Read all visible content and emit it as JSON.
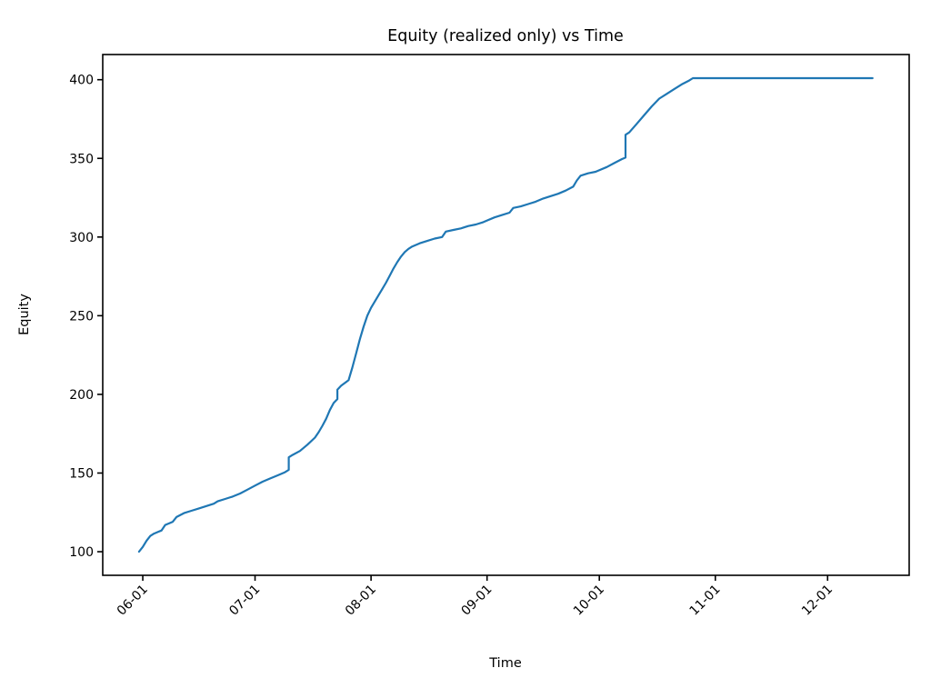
{
  "chart_data": {
    "type": "line",
    "title": "Equity (realized only) vs Time",
    "xlabel": "Time",
    "ylabel": "Equity",
    "x_tick_labels": [
      "06-01",
      "07-01",
      "08-01",
      "09-01",
      "10-01",
      "11-01",
      "12-01"
    ],
    "x_tick_days_from_06_01": [
      0,
      30,
      61,
      92,
      122,
      153,
      183
    ],
    "y_ticks": [
      100,
      150,
      200,
      250,
      300,
      350,
      400
    ],
    "xlim_days_from_06_01": [
      -10.7,
      204.8
    ],
    "ylim": [
      85,
      416
    ],
    "grid": false,
    "legend_position": "none",
    "line_color": "#1f77b4",
    "axis_color": "#000000",
    "background_color": "#ffffff",
    "series": [
      {
        "name": "Equity (realized only)",
        "points": [
          [
            "05-31",
            100
          ],
          [
            "06-01",
            103
          ],
          [
            "06-02",
            107
          ],
          [
            "06-03",
            110
          ],
          [
            "06-04",
            111.5
          ],
          [
            "06-05",
            112.5
          ],
          [
            "06-06",
            113.5
          ],
          [
            "06-07",
            117
          ],
          [
            "06-08",
            118
          ],
          [
            "06-09",
            119
          ],
          [
            "06-10",
            122
          ],
          [
            "06-12",
            124.5
          ],
          [
            "06-14",
            126
          ],
          [
            "06-16",
            127.5
          ],
          [
            "06-18",
            129
          ],
          [
            "06-20",
            130.5
          ],
          [
            "06-21",
            132
          ],
          [
            "06-23",
            133.5
          ],
          [
            "06-25",
            135
          ],
          [
            "06-27",
            137
          ],
          [
            "06-29",
            139.5
          ],
          [
            "07-01",
            142
          ],
          [
            "07-03",
            144.5
          ],
          [
            "07-05",
            146.5
          ],
          [
            "07-07",
            148.5
          ],
          [
            "07-09",
            150.5
          ],
          [
            "07-10",
            152
          ],
          [
            "07-10",
            160
          ],
          [
            "07-11",
            161.5
          ],
          [
            "07-13",
            164
          ],
          [
            "07-15",
            168
          ],
          [
            "07-17",
            172.5
          ],
          [
            "07-18",
            176
          ],
          [
            "07-19",
            180
          ],
          [
            "07-20",
            184.5
          ],
          [
            "07-21",
            190
          ],
          [
            "07-22",
            194.5
          ],
          [
            "07-23",
            197
          ],
          [
            "07-23",
            203
          ],
          [
            "07-24",
            205.5
          ],
          [
            "07-26",
            209
          ],
          [
            "07-27",
            217
          ],
          [
            "07-28",
            226
          ],
          [
            "07-29",
            235
          ],
          [
            "07-30",
            243
          ],
          [
            "07-31",
            250
          ],
          [
            "08-01",
            255
          ],
          [
            "08-02",
            259
          ],
          [
            "08-03",
            263
          ],
          [
            "08-04",
            267
          ],
          [
            "08-05",
            271
          ],
          [
            "08-06",
            275.5
          ],
          [
            "08-07",
            280
          ],
          [
            "08-08",
            284
          ],
          [
            "08-09",
            287.5
          ],
          [
            "08-10",
            290.5
          ],
          [
            "08-11",
            292.5
          ],
          [
            "08-12",
            294
          ],
          [
            "08-14",
            296
          ],
          [
            "08-16",
            297.5
          ],
          [
            "08-18",
            299
          ],
          [
            "08-20",
            300
          ],
          [
            "08-21",
            303.5
          ],
          [
            "08-23",
            304.5
          ],
          [
            "08-25",
            305.5
          ],
          [
            "08-27",
            307
          ],
          [
            "08-29",
            308
          ],
          [
            "08-31",
            309.5
          ],
          [
            "09-01",
            310.5
          ],
          [
            "09-03",
            312.5
          ],
          [
            "09-05",
            314
          ],
          [
            "09-07",
            315.5
          ],
          [
            "09-08",
            318.5
          ],
          [
            "09-10",
            319.5
          ],
          [
            "09-12",
            321
          ],
          [
            "09-14",
            322.5
          ],
          [
            "09-16",
            324.5
          ],
          [
            "09-18",
            326
          ],
          [
            "09-20",
            327.5
          ],
          [
            "09-22",
            329.5
          ],
          [
            "09-24",
            332
          ],
          [
            "09-25",
            336
          ],
          [
            "09-26",
            339
          ],
          [
            "09-28",
            340.5
          ],
          [
            "09-30",
            341.5
          ],
          [
            "10-01",
            342.5
          ],
          [
            "10-03",
            344.5
          ],
          [
            "10-05",
            347
          ],
          [
            "10-07",
            349.5
          ],
          [
            "10-08",
            350.5
          ],
          [
            "10-08",
            365
          ],
          [
            "10-09",
            366.5
          ],
          [
            "10-11",
            372
          ],
          [
            "10-13",
            377.5
          ],
          [
            "10-15",
            383
          ],
          [
            "10-17",
            388
          ],
          [
            "10-19",
            391
          ],
          [
            "10-21",
            394
          ],
          [
            "10-23",
            397
          ],
          [
            "10-25",
            399.5
          ],
          [
            "10-26",
            401
          ],
          [
            "11-01",
            401
          ],
          [
            "11-15",
            401
          ],
          [
            "12-01",
            401
          ],
          [
            "12-13",
            401
          ]
        ]
      }
    ]
  }
}
